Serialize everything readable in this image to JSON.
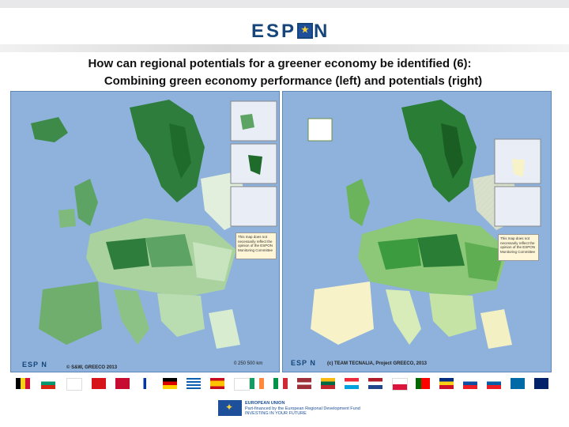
{
  "header": {
    "logo_prefix": "ESP",
    "logo_suffix": "N"
  },
  "slide": {
    "title_line1": "How can regional potentials for a greener economy be identified (6):",
    "title_line2": "Combining green economy performance (left) and potentials (right)"
  },
  "left_map": {
    "logo": "ESP N",
    "credit": "© S&W, GREECO 2013",
    "scale_label": "0    250    500 km",
    "disclaimer": "This map does not necessarily reflect the opinion of the ESPON Monitoring Committee"
  },
  "right_map": {
    "logo": "ESP N",
    "credit": "(c) TEAM TECNALIA, Project GREECO, 2013",
    "disclaimer": "This map does not necessarily reflect the opinion of the ESPON Monitoring Committee"
  },
  "footer": {
    "eu_line1": "EUROPEAN UNION",
    "eu_line2": "Part-financed by the European Regional Development Fund",
    "eu_line3": "INVESTING IN YOUR FUTURE"
  },
  "colors": {
    "espon_blue": "#15457a",
    "sea": "#7ea4d3",
    "green_dark": "#1f6b2b",
    "green_mid": "#4f9a57",
    "green_light": "#a9d29f",
    "pale_yellow": "#f7f2c8"
  }
}
